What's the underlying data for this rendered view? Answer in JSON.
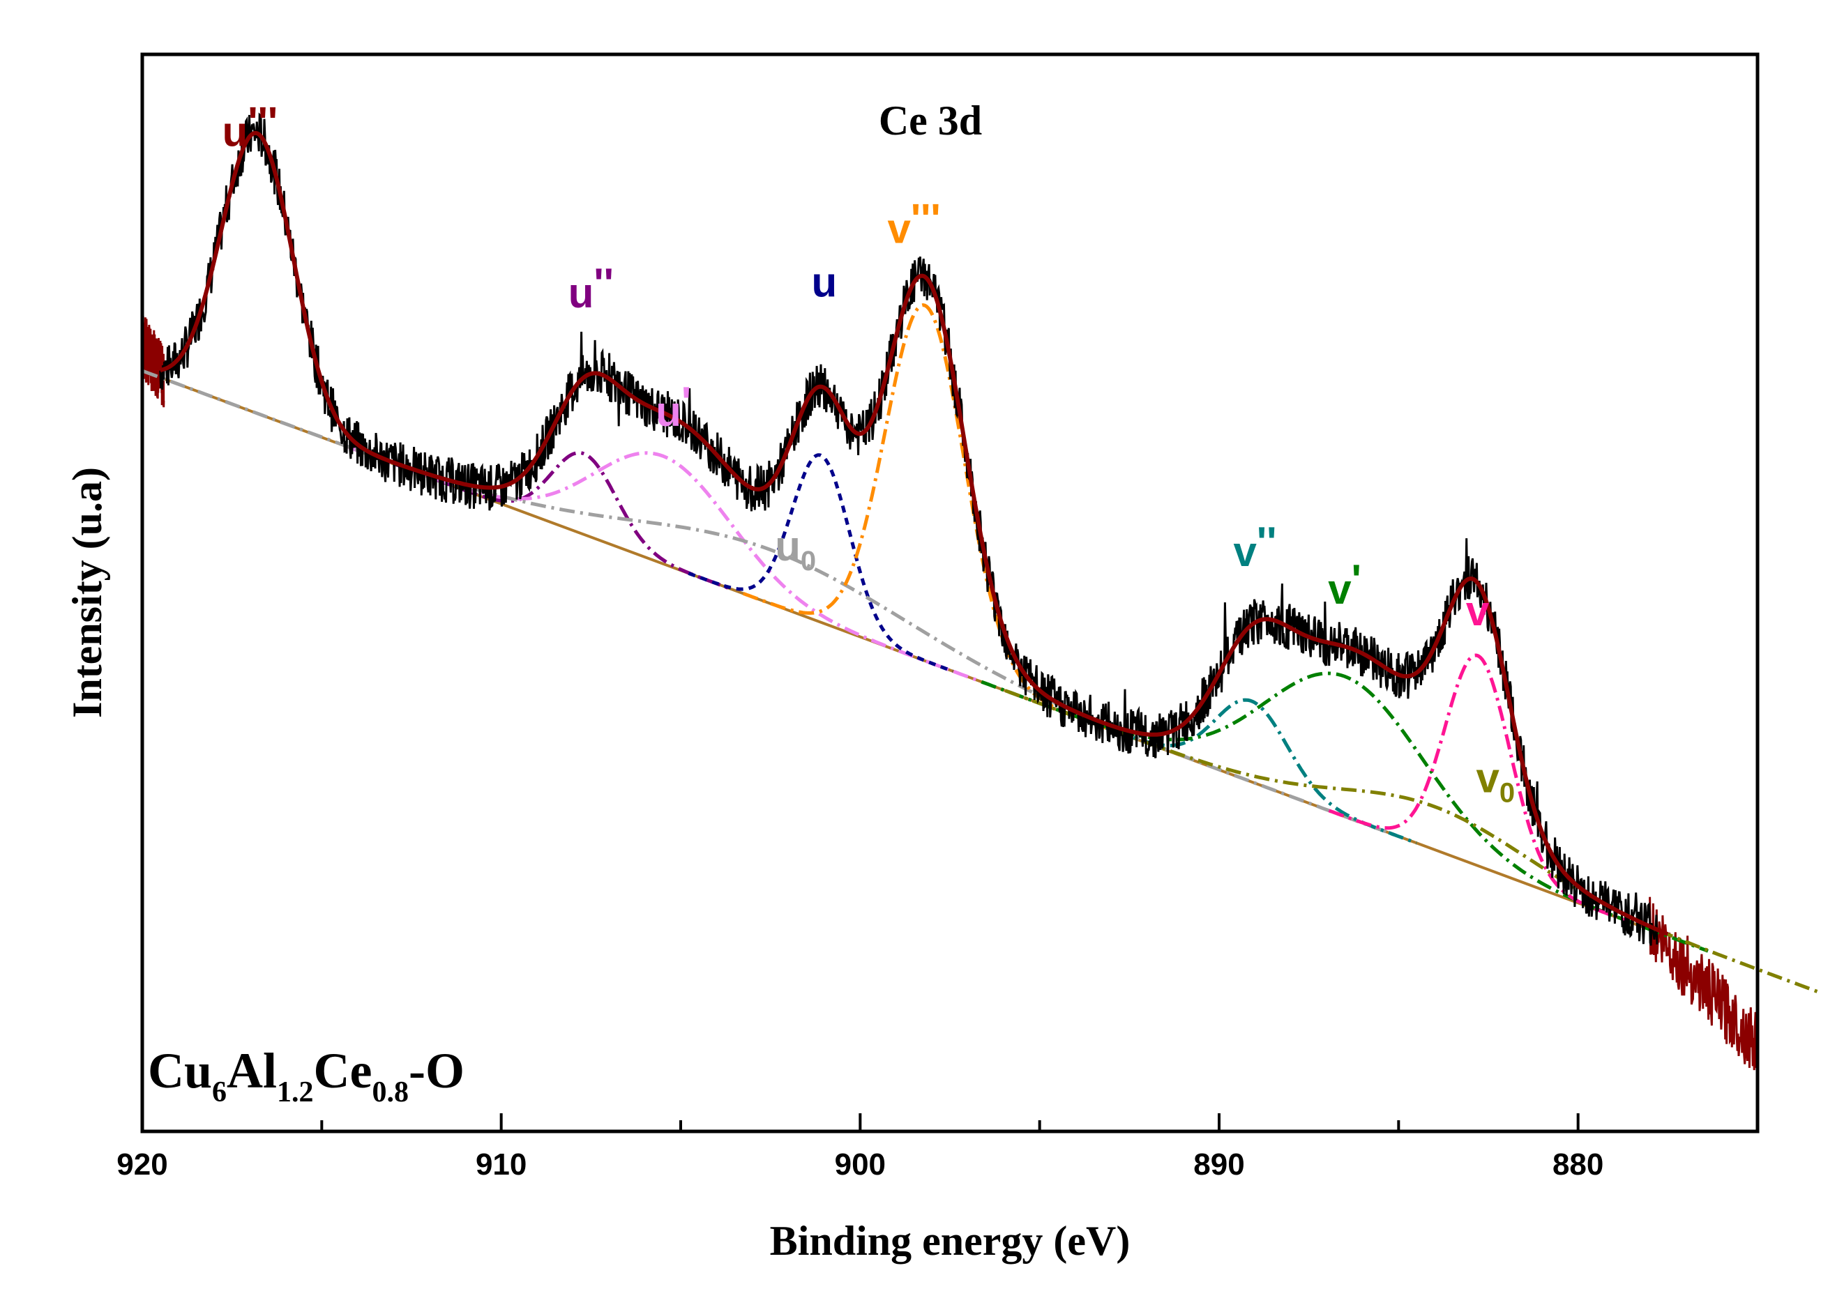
{
  "chart_data": {
    "type": "line",
    "title": "Ce 3d",
    "sample_label": {
      "parts": [
        {
          "text": "Cu",
          "sub": false
        },
        {
          "text": "6",
          "sub": true
        },
        {
          "text": "Al",
          "sub": false
        },
        {
          "text": "1.2",
          "sub": true
        },
        {
          "text": "Ce",
          "sub": false
        },
        {
          "text": "0.8",
          "sub": true
        },
        {
          "text": "-O",
          "sub": false
        }
      ]
    },
    "xlabel": "Binding energy (eV)",
    "ylabel": "Intensity (u.a)",
    "xlim": [
      920,
      875
    ],
    "x_reversed": true,
    "ylim": [
      0,
      100
    ],
    "x_ticks": [
      920,
      910,
      900,
      890,
      880
    ],
    "y_ticks_labeled": false,
    "grid": false,
    "colors": {
      "raw": "#000000",
      "envelope": "#8b0000",
      "background": "#b07a2a",
      "u3": "#8b0000",
      "u2": "#800080",
      "u": "#00008b",
      "u1": "#ee82ee",
      "u0": "#a0a0a0",
      "v3": "#ff8c00",
      "v2": "#008080",
      "v1": "#008000",
      "v": "#ff1493",
      "v0": "#808000"
    },
    "background": {
      "start": [
        919.5,
        70.0
      ],
      "end": [
        877.8,
        18.5
      ]
    },
    "raw_range": [
      919.5,
      877.8
    ],
    "noise_amplitude": 2.2,
    "envelope_range": [
      919.5,
      877.5
    ],
    "outer_tail": {
      "left": {
        "x": [
          920.0,
          919.4
        ],
        "y": [
          73.0,
          70.0
        ]
      },
      "right": {
        "x": [
          878.0,
          875.0
        ],
        "y": [
          19.0,
          8.0
        ]
      }
    },
    "peaks": [
      {
        "id": "u3",
        "label_main": "u",
        "label_suffix": "'''",
        "label_sub": "",
        "center": 916.8,
        "height": 26,
        "sigma": 1.0,
        "label_x": 917.0,
        "label_y": 91.5,
        "label_color": "#8b0000",
        "draw_component": false
      },
      {
        "id": "u2",
        "label_main": "u",
        "label_suffix": "''",
        "label_sub": "",
        "center": 907.7,
        "height": 7.5,
        "sigma": 0.9,
        "label_x": 907.5,
        "label_y": 76.5,
        "label_color": "#800080",
        "draw_component": true,
        "style": "dashdot"
      },
      {
        "id": "u1",
        "label_main": "u",
        "label_suffix": "'",
        "label_sub": "",
        "center": 905.5,
        "height": 10,
        "sigma": 1.9,
        "label_x": 905.2,
        "label_y": 65.5,
        "label_color": "#ee82ee",
        "draw_component": true,
        "style": "dashdot"
      },
      {
        "id": "u",
        "label_main": "u",
        "label_suffix": "",
        "label_sub": "",
        "center": 901.1,
        "height": 15.5,
        "sigma": 0.8,
        "label_x": 901.0,
        "label_y": 77.5,
        "label_color": "#00008b",
        "draw_component": true,
        "style": "dotted"
      },
      {
        "id": "u0",
        "label_main": "u",
        "label_suffix": "",
        "label_sub": "0",
        "center": 902.5,
        "height": 5,
        "sigma": 3.8,
        "label_x": 901.8,
        "label_y": 53.0,
        "label_color": "#a0a0a0",
        "draw_component": true,
        "style": "dashdot"
      },
      {
        "id": "v3",
        "label_main": "v",
        "label_suffix": "'''",
        "label_sub": "",
        "center": 898.2,
        "height": 33,
        "sigma": 1.1,
        "label_x": 898.5,
        "label_y": 82.5,
        "label_color": "#ff8c00",
        "draw_component": true,
        "style": "dashdot"
      },
      {
        "id": "v2",
        "label_main": "v",
        "label_suffix": "''",
        "label_sub": "",
        "center": 889.1,
        "height": 7.5,
        "sigma": 1.0,
        "label_x": 889.0,
        "label_y": 52.5,
        "label_color": "#008080",
        "draw_component": true,
        "style": "dashdot"
      },
      {
        "id": "v1",
        "label_main": "v",
        "label_suffix": "'",
        "label_sub": "",
        "center": 886.5,
        "height": 13,
        "sigma": 2.2,
        "label_x": 886.5,
        "label_y": 49.0,
        "label_color": "#008000",
        "draw_component": true,
        "style": "dashdot"
      },
      {
        "id": "v",
        "label_main": "v",
        "label_suffix": "",
        "label_sub": "",
        "center": 882.8,
        "height": 19.5,
        "sigma": 0.9,
        "label_x": 882.8,
        "label_y": 47.0,
        "label_color": "#ff1493",
        "draw_component": true,
        "style": "dashdot"
      },
      {
        "id": "v0",
        "label_main": "v",
        "label_suffix": "",
        "label_sub": "0",
        "center": 884.0,
        "height": 4,
        "sigma": 2.6,
        "label_x": 882.3,
        "label_y": 31.5,
        "label_color": "#808000",
        "draw_component": true,
        "style": "dashdot"
      }
    ]
  }
}
